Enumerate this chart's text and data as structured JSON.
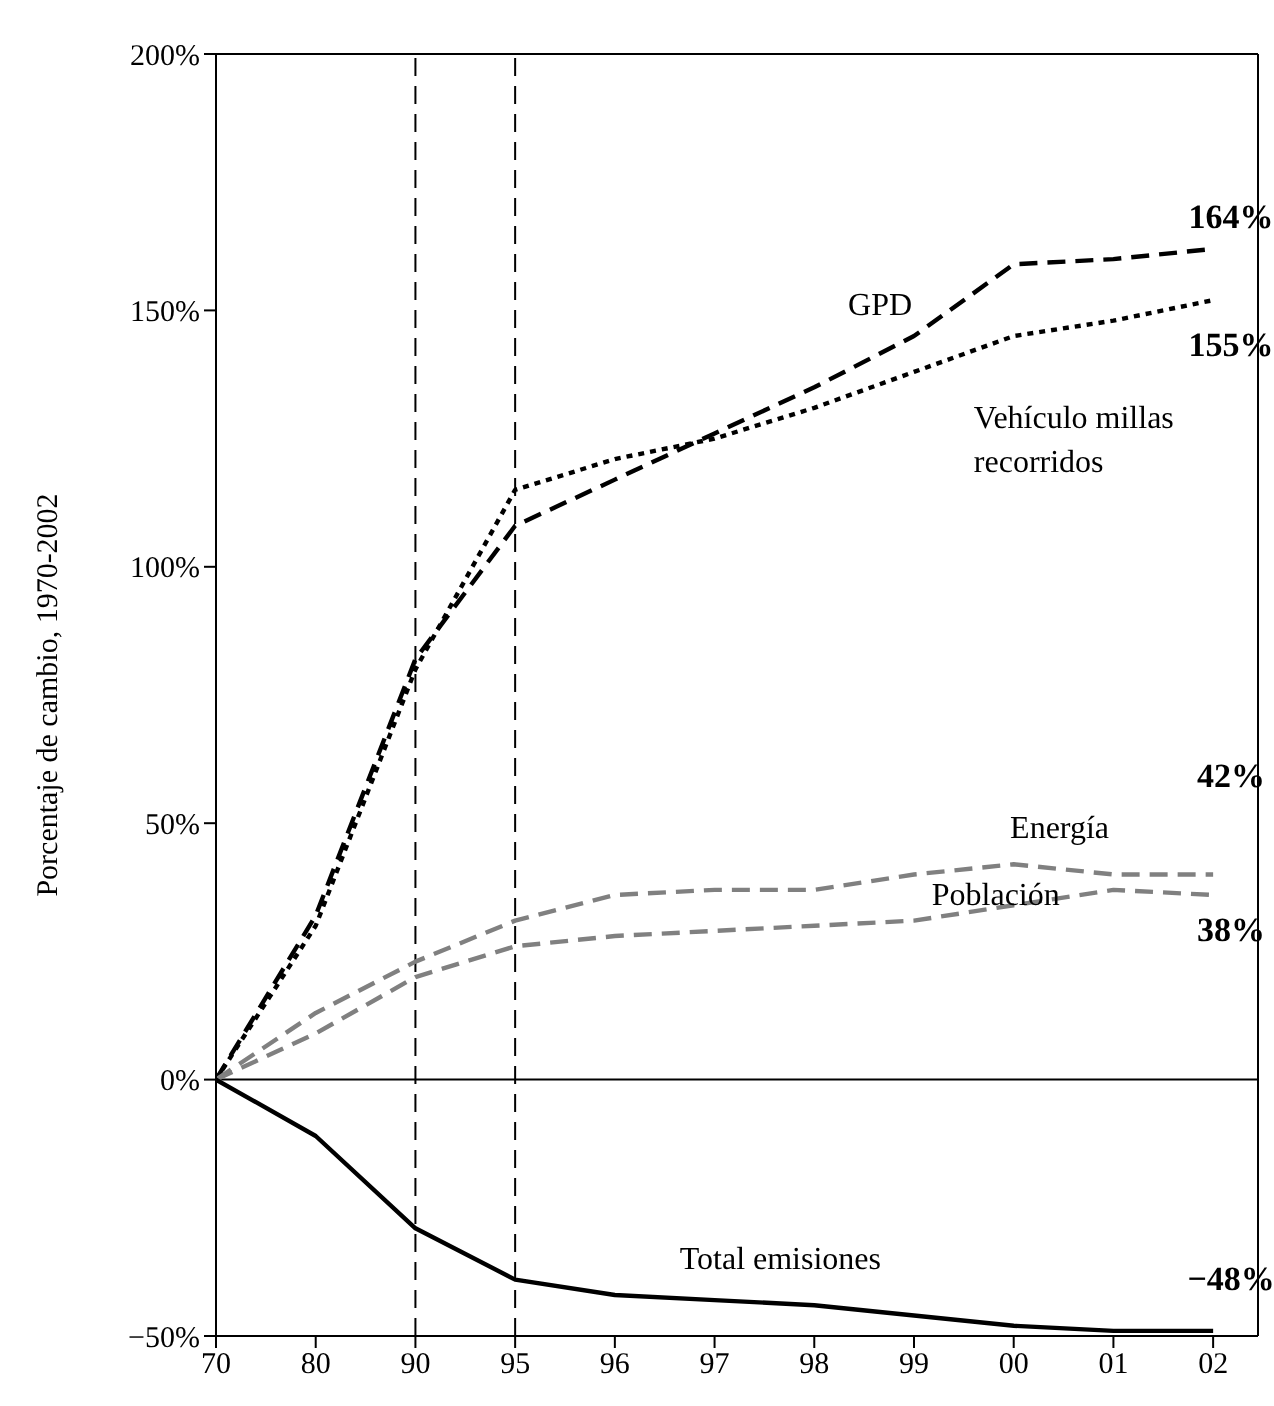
{
  "chart_data": {
    "type": "line",
    "ylabel": "Porcentaje de cambio, 1970-2002",
    "categories": [
      "70",
      "80",
      "90",
      "95",
      "96",
      "97",
      "98",
      "99",
      "00",
      "01",
      "02"
    ],
    "ylim": [
      -50,
      200
    ],
    "yticks": [
      {
        "value": -50,
        "label": "−50%"
      },
      {
        "value": 0,
        "label": "0%"
      },
      {
        "value": 50,
        "label": "50%"
      },
      {
        "value": 100,
        "label": "100%"
      },
      {
        "value": 150,
        "label": "150%"
      },
      {
        "value": 200,
        "label": "200%"
      }
    ],
    "marker": "none",
    "series": [
      {
        "color": "#000000",
        "line_style": "dashed",
        "values": [
          0,
          32,
          82,
          108,
          117,
          126,
          135,
          145,
          159,
          160,
          162
        ]
      },
      {
        "color": "#000000",
        "line_style": "dotted",
        "values": [
          0,
          30,
          80,
          115,
          121,
          125,
          131,
          138,
          145,
          148,
          152
        ]
      },
      {
        "color": "#808080",
        "line_style": "dashed",
        "values": [
          0,
          13,
          23,
          31,
          36,
          37,
          37,
          40,
          42,
          40,
          40
        ]
      },
      {
        "color": "#808080",
        "line_style": "dashed",
        "values": [
          0,
          9,
          20,
          26,
          28,
          29,
          30,
          31,
          34,
          37,
          36
        ]
      },
      {
        "color": "#000000",
        "line_style": "solid",
        "values": [
          0,
          -11,
          -29,
          -39,
          -42,
          -43,
          -44,
          -46,
          -48,
          -49,
          -49
        ]
      }
    ],
    "ref_lines": [
      {
        "axis": "x",
        "value": "90",
        "color": "#000000",
        "line_style": "dashed"
      },
      {
        "axis": "x",
        "value": "95",
        "color": "#000000",
        "line_style": "dashed"
      },
      {
        "axis": "y",
        "value": 0,
        "color": "#000000",
        "line_style": "solid"
      }
    ],
    "annotations": [
      "GPD",
      "Vehículo millas recorridos",
      "Energía",
      "Población",
      "Total emisiones",
      "164%",
      "155%",
      "42%",
      "38%",
      "−48%"
    ]
  }
}
